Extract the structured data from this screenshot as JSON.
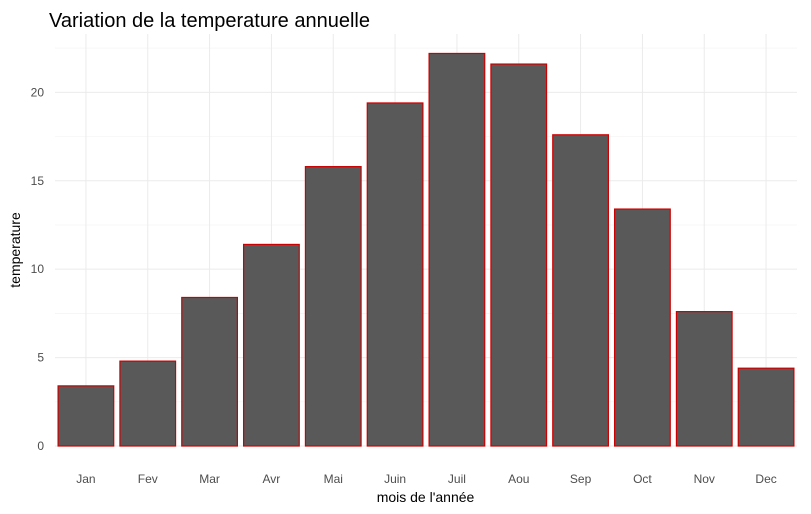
{
  "chart_data": {
    "type": "bar",
    "title": "Variation de la temperature annuelle",
    "xlabel": "mois de l'année",
    "ylabel": "temperature",
    "categories": [
      "Jan",
      "Fev",
      "Mar",
      "Avr",
      "Mai",
      "Juin",
      "Juil",
      "Aou",
      "Sep",
      "Oct",
      "Nov",
      "Dec"
    ],
    "values": [
      3.4,
      4.8,
      8.4,
      11.4,
      15.8,
      19.4,
      22.2,
      21.6,
      17.6,
      13.4,
      7.6,
      4.4
    ],
    "ylim": [
      0,
      23.3
    ],
    "yticks": [
      0,
      5,
      10,
      15,
      20
    ],
    "ytick_labels": [
      "0",
      "5",
      "10",
      "15",
      "20"
    ],
    "grid": true,
    "legend": "none",
    "colors": {
      "bar_fill": "#595959",
      "bar_outline": "#cc0000",
      "grid": "#ebebeb"
    }
  }
}
